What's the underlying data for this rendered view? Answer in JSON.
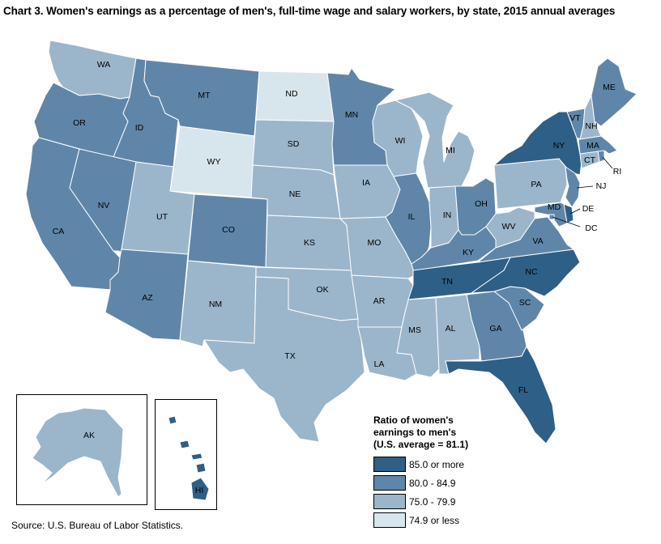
{
  "title": "Chart 3. Women's earnings as a percentage of men's, full-time wage and salary workers, by state, 2015 annual averages",
  "source": "Source: U.S. Bureau of Labor Statistics.",
  "legend": {
    "title": "Ratio of women's earnings to men's (U.S. average = 81.1)",
    "title_lines": [
      "Ratio of women's",
      "earnings to men's",
      "(U.S. average = 81.1)"
    ],
    "items": [
      {
        "label": "85.0 or more",
        "color": "#2e5f86"
      },
      {
        "label": "80.0 - 84.9",
        "color": "#5f86a9"
      },
      {
        "label": "75.0 - 79.9",
        "color": "#9bb6cb"
      },
      {
        "label": "74.9 or less",
        "color": "#d7e6ec"
      }
    ]
  },
  "states": [
    {
      "abbr": "WA",
      "bin": 2
    },
    {
      "abbr": "OR",
      "bin": 1
    },
    {
      "abbr": "CA",
      "bin": 1
    },
    {
      "abbr": "ID",
      "bin": 1
    },
    {
      "abbr": "NV",
      "bin": 1
    },
    {
      "abbr": "MT",
      "bin": 1
    },
    {
      "abbr": "WY",
      "bin": 3
    },
    {
      "abbr": "UT",
      "bin": 2
    },
    {
      "abbr": "AZ",
      "bin": 1
    },
    {
      "abbr": "CO",
      "bin": 1
    },
    {
      "abbr": "NM",
      "bin": 2
    },
    {
      "abbr": "ND",
      "bin": 3
    },
    {
      "abbr": "SD",
      "bin": 2
    },
    {
      "abbr": "NE",
      "bin": 2
    },
    {
      "abbr": "KS",
      "bin": 2
    },
    {
      "abbr": "OK",
      "bin": 2
    },
    {
      "abbr": "TX",
      "bin": 2
    },
    {
      "abbr": "MN",
      "bin": 1
    },
    {
      "abbr": "IA",
      "bin": 2
    },
    {
      "abbr": "MO",
      "bin": 2
    },
    {
      "abbr": "AR",
      "bin": 2
    },
    {
      "abbr": "LA",
      "bin": 2
    },
    {
      "abbr": "WI",
      "bin": 2
    },
    {
      "abbr": "IL",
      "bin": 1
    },
    {
      "abbr": "MI",
      "bin": 2
    },
    {
      "abbr": "IN",
      "bin": 2
    },
    {
      "abbr": "OH",
      "bin": 1
    },
    {
      "abbr": "KY",
      "bin": 1
    },
    {
      "abbr": "TN",
      "bin": 0
    },
    {
      "abbr": "MS",
      "bin": 2
    },
    {
      "abbr": "AL",
      "bin": 2
    },
    {
      "abbr": "GA",
      "bin": 1
    },
    {
      "abbr": "FL",
      "bin": 0
    },
    {
      "abbr": "SC",
      "bin": 1
    },
    {
      "abbr": "NC",
      "bin": 0
    },
    {
      "abbr": "VA",
      "bin": 1
    },
    {
      "abbr": "WV",
      "bin": 2
    },
    {
      "abbr": "PA",
      "bin": 2
    },
    {
      "abbr": "NY",
      "bin": 0
    },
    {
      "abbr": "NJ",
      "bin": 1
    },
    {
      "abbr": "DE",
      "bin": 0
    },
    {
      "abbr": "MD",
      "bin": 1
    },
    {
      "abbr": "DC",
      "bin": 1
    },
    {
      "abbr": "CT",
      "bin": 2
    },
    {
      "abbr": "RI",
      "bin": 1
    },
    {
      "abbr": "MA",
      "bin": 1
    },
    {
      "abbr": "VT",
      "bin": 1
    },
    {
      "abbr": "NH",
      "bin": 2
    },
    {
      "abbr": "ME",
      "bin": 1
    },
    {
      "abbr": "AK",
      "bin": 2
    },
    {
      "abbr": "HI",
      "bin": 0
    }
  ]
}
